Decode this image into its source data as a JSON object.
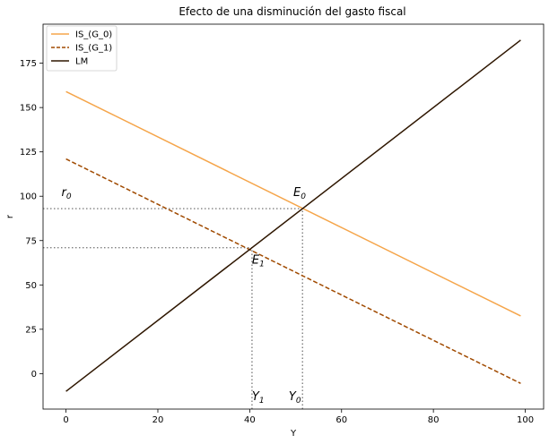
{
  "chart_data": {
    "type": "line",
    "title": "Efecto de una disminución del gasto fiscal",
    "xlabel": "Y",
    "ylabel": "r",
    "xlim": [
      -5,
      104
    ],
    "ylim": [
      -20,
      197
    ],
    "xticks": [
      0,
      20,
      40,
      60,
      80,
      100
    ],
    "yticks": [
      0,
      25,
      50,
      75,
      100,
      125,
      150,
      175
    ],
    "xtick_labels": [
      "0",
      "20",
      "40",
      "60",
      "80",
      "100"
    ],
    "ytick_labels": [
      "0",
      "25",
      "50",
      "75",
      "100",
      "125",
      "150",
      "175"
    ],
    "grid": false,
    "legend_position": "top-left",
    "series": [
      {
        "name": "IS_(G_0)",
        "x": [
          0,
          99
        ],
        "y": [
          159,
          32.5
        ],
        "color": "#f5a54a",
        "style": "solid"
      },
      {
        "name": "IS_(G_1)",
        "x": [
          0,
          99
        ],
        "y": [
          121,
          -5.5
        ],
        "color": "#a04a00",
        "style": "dashed"
      },
      {
        "name": "LM",
        "x": [
          0,
          99
        ],
        "y": [
          -10,
          188
        ],
        "color": "#2e1600",
        "style": "solid"
      }
    ],
    "guides": [
      {
        "x": [
          -5,
          51.5
        ],
        "y": [
          93,
          93
        ]
      },
      {
        "x": [
          51.5,
          51.5
        ],
        "y": [
          -20,
          93
        ]
      },
      {
        "x": [
          -5,
          40.5
        ],
        "y": [
          71,
          71
        ]
      },
      {
        "x": [
          40.5,
          40.5
        ],
        "y": [
          -20,
          71
        ]
      }
    ],
    "annotations": [
      {
        "base": "E",
        "sub": "0",
        "x": 49.5,
        "y": 100,
        "color": "#000000"
      },
      {
        "base": "E",
        "sub": "1",
        "x": 40.5,
        "y": 62,
        "color": "#000000"
      },
      {
        "base": "r",
        "sub": "0",
        "x": -1,
        "y": 100,
        "color": "#000000"
      },
      {
        "base": "Y",
        "sub": "1",
        "x": 40.5,
        "y": -15,
        "color": "#4a6ab0"
      },
      {
        "base": "Y",
        "sub": "0",
        "x": 48.5,
        "y": -15,
        "color": "#000000"
      }
    ]
  }
}
